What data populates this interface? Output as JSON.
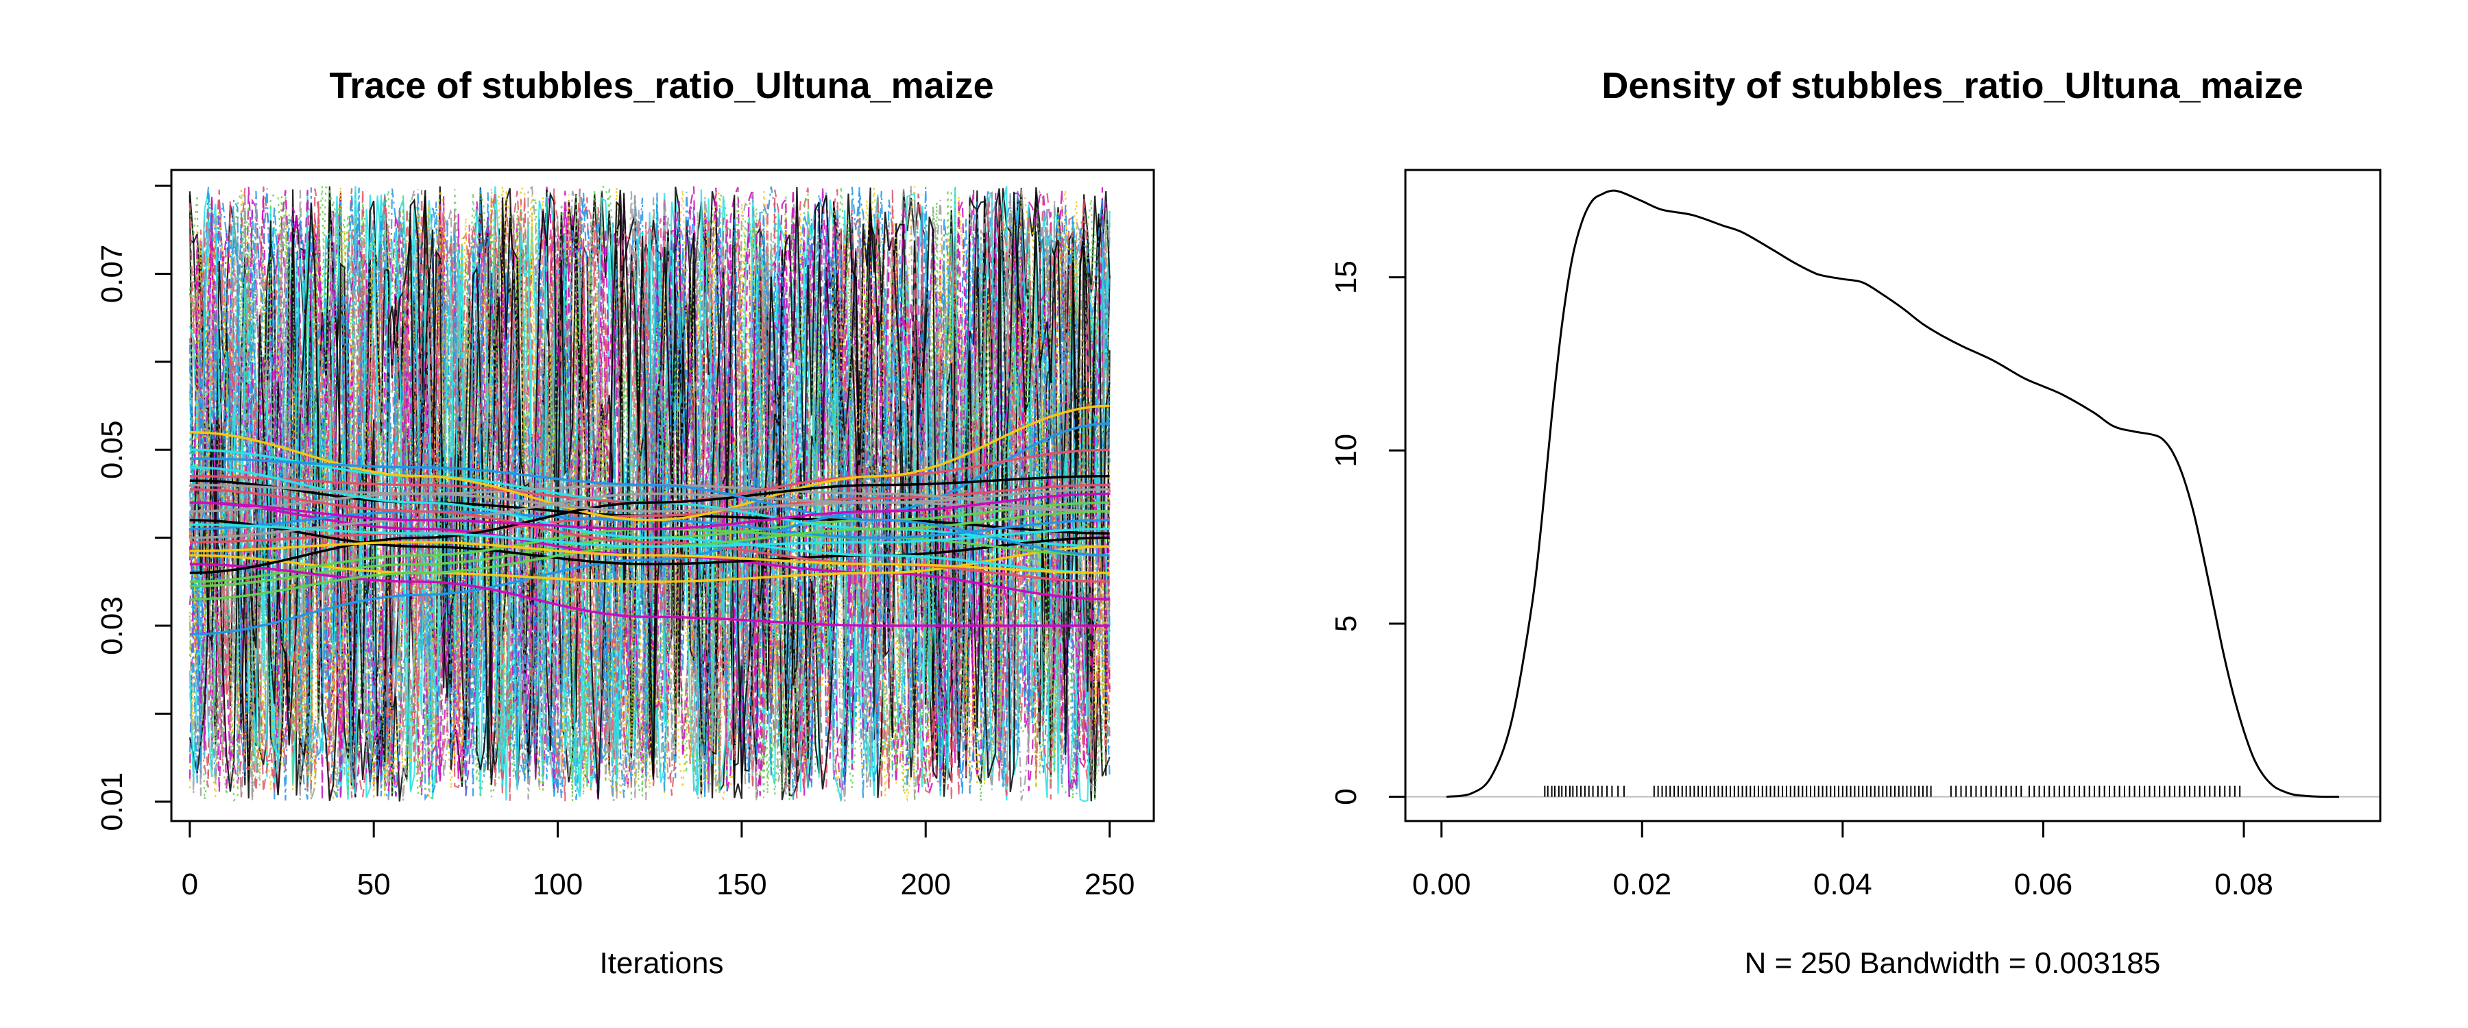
{
  "chart_data": [
    {
      "type": "line",
      "title": "Trace of stubbles_ratio_Ultuna_maize",
      "xlabel": "Iterations",
      "ylabel": "",
      "xlim": [
        -5,
        262
      ],
      "ylim": [
        0.0078,
        0.0818
      ],
      "xticks": [
        0,
        50,
        100,
        150,
        200,
        250
      ],
      "xtick_labels": [
        "0",
        "50",
        "100",
        "150",
        "200",
        "250"
      ],
      "yticks": [
        0.01,
        0.02,
        0.03,
        0.04,
        0.05,
        0.06,
        0.07,
        0.08
      ],
      "ytick_labels": [
        "0.01",
        "",
        "0.03",
        "",
        "0.05",
        "",
        "0.07",
        ""
      ],
      "n_iterations": 250,
      "value_range": [
        0.01,
        0.08
      ],
      "chain_colors": [
        "#000000",
        "#DF536B",
        "#61D04F",
        "#2297E6",
        "#28E2E5",
        "#CD0BBC",
        "#F5C710",
        "#9E9E9E"
      ],
      "chain_linestyles": [
        "solid",
        "dashed",
        "dotted",
        "dotdash"
      ],
      "smooth_lines": [
        [
          0.0465,
          0.044,
          0.0425,
          0.042,
          0.0405
        ],
        [
          0.0395,
          0.0405,
          0.0425,
          0.0445,
          0.046
        ],
        [
          0.0345,
          0.037,
          0.04,
          0.042,
          0.044
        ],
        [
          0.029,
          0.0335,
          0.0375,
          0.043,
          0.053
        ],
        [
          0.05,
          0.047,
          0.044,
          0.041,
          0.039
        ],
        [
          0.044,
          0.041,
          0.038,
          0.036,
          0.033
        ],
        [
          0.038,
          0.036,
          0.035,
          0.036,
          0.039
        ],
        [
          0.043,
          0.045,
          0.046,
          0.045,
          0.043
        ],
        [
          0.042,
          0.039,
          0.037,
          0.038,
          0.04
        ],
        [
          0.047,
          0.046,
          0.044,
          0.047,
          0.05
        ],
        [
          0.035,
          0.038,
          0.041,
          0.04,
          0.038
        ],
        [
          0.041,
          0.043,
          0.042,
          0.04,
          0.042
        ],
        [
          0.048,
          0.044,
          0.04,
          0.038,
          0.036
        ],
        [
          0.037,
          0.035,
          0.031,
          0.03,
          0.03
        ],
        [
          0.052,
          0.047,
          0.042,
          0.047,
          0.055
        ],
        [
          0.04,
          0.042,
          0.045,
          0.044,
          0.043
        ],
        [
          0.036,
          0.04,
          0.044,
          0.046,
          0.047
        ],
        [
          0.0455,
          0.043,
          0.0395,
          0.037,
          0.035
        ],
        [
          0.033,
          0.036,
          0.039,
          0.041,
          0.043
        ],
        [
          0.049,
          0.048,
          0.046,
          0.042,
          0.038
        ],
        [
          0.0415,
          0.0405,
          0.039,
          0.0395,
          0.041
        ],
        [
          0.044,
          0.042,
          0.041,
          0.043,
          0.045
        ],
        [
          0.0385,
          0.0395,
          0.038,
          0.037,
          0.036
        ],
        [
          0.046,
          0.045,
          0.043,
          0.044,
          0.0455
        ]
      ]
    },
    {
      "type": "area",
      "title": "Density of stubbles_ratio_Ultuna_maize",
      "xlabel": "N = 250   Bandwidth = 0.003185",
      "ylabel": "",
      "xlim": [
        -0.0036,
        0.0936
      ],
      "ylim": [
        -0.7,
        18.1
      ],
      "xticks": [
        0.0,
        0.02,
        0.04,
        0.06,
        0.08
      ],
      "xtick_labels": [
        "0.00",
        "0.02",
        "0.04",
        "0.06",
        "0.08"
      ],
      "yticks": [
        0,
        5,
        10,
        15
      ],
      "ytick_labels": [
        "0",
        "5",
        "10",
        "15"
      ],
      "n": 250,
      "bandwidth": 0.003185,
      "x": [
        0.0005,
        0.003,
        0.005,
        0.007,
        0.009,
        0.01,
        0.011,
        0.012,
        0.013,
        0.014,
        0.015,
        0.016,
        0.017,
        0.018,
        0.02,
        0.022,
        0.025,
        0.028,
        0.03,
        0.033,
        0.035,
        0.037,
        0.038,
        0.04,
        0.042,
        0.044,
        0.046,
        0.048,
        0.05,
        0.052,
        0.055,
        0.058,
        0.06,
        0.062,
        0.065,
        0.067,
        0.069,
        0.071,
        0.072,
        0.073,
        0.074,
        0.075,
        0.076,
        0.077,
        0.078,
        0.079,
        0.08,
        0.081,
        0.082,
        0.083,
        0.084,
        0.085,
        0.086,
        0.087,
        0.088,
        0.0895
      ],
      "y": [
        0.0,
        0.1,
        0.6,
        2.2,
        5.5,
        8.0,
        11.0,
        13.6,
        15.5,
        16.6,
        17.2,
        17.4,
        17.5,
        17.45,
        17.2,
        16.95,
        16.8,
        16.5,
        16.3,
        15.8,
        15.45,
        15.15,
        15.05,
        14.95,
        14.85,
        14.5,
        14.1,
        13.65,
        13.3,
        13.0,
        12.6,
        12.1,
        11.85,
        11.6,
        11.1,
        10.7,
        10.55,
        10.45,
        10.3,
        9.9,
        9.2,
        8.2,
        6.9,
        5.5,
        4.1,
        2.9,
        1.9,
        1.1,
        0.6,
        0.3,
        0.15,
        0.06,
        0.03,
        0.01,
        0.0,
        0.0
      ],
      "rug": [
        0.0103,
        0.0106,
        0.011,
        0.0113,
        0.0117,
        0.012,
        0.0124,
        0.0128,
        0.0131,
        0.0135,
        0.0139,
        0.0143,
        0.0147,
        0.0151,
        0.0156,
        0.016,
        0.0165,
        0.017,
        0.0176,
        0.0182,
        0.0212,
        0.0216,
        0.022,
        0.0224,
        0.0228,
        0.0232,
        0.0236,
        0.024,
        0.0244,
        0.0248,
        0.0252,
        0.0256,
        0.026,
        0.0264,
        0.0268,
        0.0272,
        0.0276,
        0.028,
        0.0284,
        0.0288,
        0.0292,
        0.0296,
        0.03,
        0.0304,
        0.0308,
        0.0312,
        0.0316,
        0.032,
        0.0324,
        0.0328,
        0.0332,
        0.0336,
        0.034,
        0.0344,
        0.0348,
        0.0352,
        0.0356,
        0.036,
        0.0364,
        0.0368,
        0.0372,
        0.0376,
        0.038,
        0.0384,
        0.0388,
        0.0392,
        0.0396,
        0.04,
        0.0404,
        0.0408,
        0.0412,
        0.0416,
        0.042,
        0.0424,
        0.0428,
        0.0432,
        0.0436,
        0.044,
        0.0444,
        0.0448,
        0.0452,
        0.0456,
        0.046,
        0.0464,
        0.0468,
        0.0472,
        0.0476,
        0.048,
        0.0484,
        0.0488,
        0.0508,
        0.0513,
        0.0518,
        0.0523,
        0.0528,
        0.0533,
        0.0538,
        0.0543,
        0.0548,
        0.0553,
        0.0558,
        0.0563,
        0.0568,
        0.0573,
        0.0578,
        0.0586,
        0.0591,
        0.0596,
        0.0601,
        0.0606,
        0.0611,
        0.0616,
        0.0621,
        0.0626,
        0.0631,
        0.0636,
        0.0641,
        0.0646,
        0.0651,
        0.0656,
        0.0661,
        0.0666,
        0.0671,
        0.0676,
        0.0681,
        0.0686,
        0.0691,
        0.0696,
        0.0701,
        0.0706,
        0.0711,
        0.0716,
        0.0721,
        0.0726,
        0.0731,
        0.0736,
        0.0741,
        0.0746,
        0.0751,
        0.0756,
        0.0761,
        0.0766,
        0.0771,
        0.0776,
        0.0781,
        0.0786,
        0.0791,
        0.0796
      ]
    }
  ]
}
